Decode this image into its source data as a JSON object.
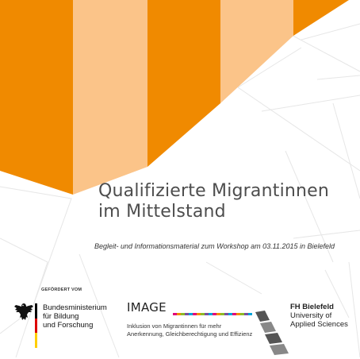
{
  "cover": {
    "title_line1": "Qualifizierte Migrantinnen",
    "title_line2": "im Mittelstand",
    "subtitle": "Begleit- und Informationsmaterial zum Workshop am 03.11.2015 in Bielefeld"
  },
  "colors": {
    "orange": "#f08a00",
    "light_orange": "#fbc489",
    "title_gray": "#4d4d4d",
    "line_gray": "#e6e6e6"
  },
  "funding": {
    "label": "GEFÖRDERT VOM",
    "ministry_line1": "Bundesministerium",
    "ministry_line2": "für Bildung",
    "ministry_line3": "und Forschung",
    "ministry_icon": "federal-eagle-icon"
  },
  "image_project": {
    "name": "IMAGE",
    "line1": "Inklusion von Migrantinnen für mehr",
    "line2": "Anerkennung, Gleichberechtigung und Effizienz",
    "bar_colors": [
      "#e2007a",
      "#f08a00",
      "#8dbb25",
      "#7a4fa0",
      "#00a3d9",
      "#e2007a",
      "#f08a00",
      "#8dbb25",
      "#7a4fa0",
      "#00a3d9",
      "#e2007a",
      "#f08a00",
      "#8dbb25",
      "#7a4fa0",
      "#00a3d9",
      "#e2007a",
      "#f08a00",
      "#8dbb25",
      "#7a4fa0",
      "#00a3d9"
    ]
  },
  "university": {
    "name": "FH Bielefeld",
    "line2": "University of",
    "line3": "Applied Sciences",
    "logo_icon": "fh-bielefeld-logo-icon"
  }
}
